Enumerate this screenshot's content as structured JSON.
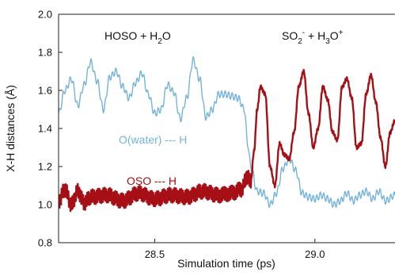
{
  "chart_data": {
    "type": "line",
    "xlabel": "Simulation time (ps)",
    "ylabel": "X-H distances (Å)",
    "xlim": [
      28.2,
      29.25
    ],
    "ylim": [
      0.8,
      2.0
    ],
    "x_ticks": [
      "28.5",
      "29.0"
    ],
    "x_tick_values": [
      28.5,
      29.0
    ],
    "y_ticks": [
      "0.8",
      "1.0",
      "1.2",
      "1.4",
      "1.6",
      "1.8",
      "2.0"
    ],
    "y_tick_values": [
      0.8,
      1.0,
      1.2,
      1.4,
      1.6,
      1.8,
      2.0
    ],
    "grid": false,
    "annotations": {
      "left_state": {
        "main": "HOSO + H",
        "sub": "2",
        "tail": "O"
      },
      "right_state": {
        "p1": "SO",
        "sub1": "2",
        "sup1": "-",
        "p2": " + H",
        "sub2": "3",
        "p3": "O",
        "sup2": "+"
      }
    },
    "series": [
      {
        "name": "O(water) --- H",
        "color": "#74b3dc",
        "x": [
          28.2,
          28.22,
          28.24,
          28.26,
          28.28,
          28.3,
          28.32,
          28.34,
          28.36,
          28.38,
          28.4,
          28.42,
          28.44,
          28.46,
          28.48,
          28.5,
          28.52,
          28.54,
          28.56,
          28.58,
          28.6,
          28.62,
          28.64,
          28.66,
          28.68,
          28.7,
          28.72,
          28.74,
          28.76,
          28.78,
          28.79,
          28.8,
          28.82,
          28.84,
          28.86,
          28.88,
          28.9,
          28.92,
          28.94,
          28.96,
          28.98,
          29.0,
          29.02,
          29.04,
          29.06,
          29.08,
          29.1,
          29.12,
          29.14,
          29.16,
          29.18,
          29.2,
          29.22,
          29.25
        ],
        "y": [
          1.48,
          1.6,
          1.66,
          1.52,
          1.63,
          1.75,
          1.65,
          1.5,
          1.67,
          1.7,
          1.62,
          1.56,
          1.64,
          1.69,
          1.58,
          1.48,
          1.5,
          1.63,
          1.59,
          1.45,
          1.56,
          1.76,
          1.66,
          1.46,
          1.5,
          1.58,
          1.58,
          1.57,
          1.56,
          1.5,
          1.32,
          1.2,
          1.07,
          1.06,
          1.0,
          1.06,
          1.19,
          1.24,
          1.18,
          1.06,
          1.04,
          1.03,
          1.05,
          1.03,
          1.0,
          1.02,
          1.06,
          1.02,
          1.05,
          1.07,
          1.03,
          1.07,
          1.02,
          1.05
        ]
      },
      {
        "name": "OSO --- H",
        "color": "#a50f15",
        "x": [
          28.2,
          28.22,
          28.24,
          28.26,
          28.28,
          28.3,
          28.35,
          28.4,
          28.45,
          28.5,
          28.55,
          28.6,
          28.65,
          28.7,
          28.74,
          28.77,
          28.79,
          28.8,
          28.81,
          28.82,
          28.83,
          28.845,
          28.86,
          28.875,
          28.89,
          28.905,
          28.92,
          28.935,
          28.95,
          28.965,
          28.98,
          28.995,
          29.01,
          29.025,
          29.04,
          29.055,
          29.07,
          29.085,
          29.1,
          29.115,
          29.13,
          29.145,
          29.16,
          29.175,
          29.19,
          29.205,
          29.22,
          29.235,
          29.25
        ],
        "y": [
          1.02,
          1.08,
          1.0,
          1.07,
          1.01,
          1.04,
          1.05,
          1.02,
          1.06,
          1.03,
          1.05,
          1.04,
          1.07,
          1.05,
          1.06,
          1.08,
          1.15,
          1.12,
          1.28,
          1.5,
          1.62,
          1.58,
          1.2,
          1.1,
          1.32,
          1.26,
          1.24,
          1.38,
          1.62,
          1.7,
          1.48,
          1.3,
          1.4,
          1.62,
          1.55,
          1.38,
          1.34,
          1.62,
          1.66,
          1.56,
          1.3,
          1.32,
          1.58,
          1.68,
          1.54,
          1.35,
          1.2,
          1.38,
          1.44
        ]
      }
    ]
  }
}
